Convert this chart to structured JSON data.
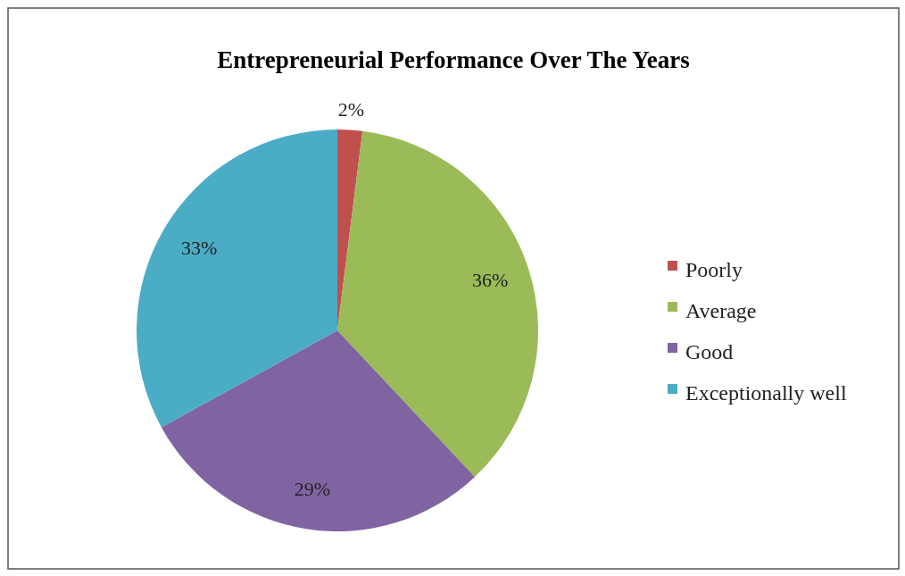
{
  "chart_data": {
    "type": "pie",
    "title": "Entrepreneurial Performance Over The Years",
    "categories": [
      "Poorly",
      "Average",
      "Good",
      "Exceptionally well"
    ],
    "values": [
      2,
      36,
      29,
      33
    ],
    "colors": [
      "#c0504d",
      "#9bbb59",
      "#8064a2",
      "#4bacc6"
    ],
    "value_labels": [
      "2%",
      "36%",
      "29%",
      "33%"
    ],
    "legend": "right"
  }
}
